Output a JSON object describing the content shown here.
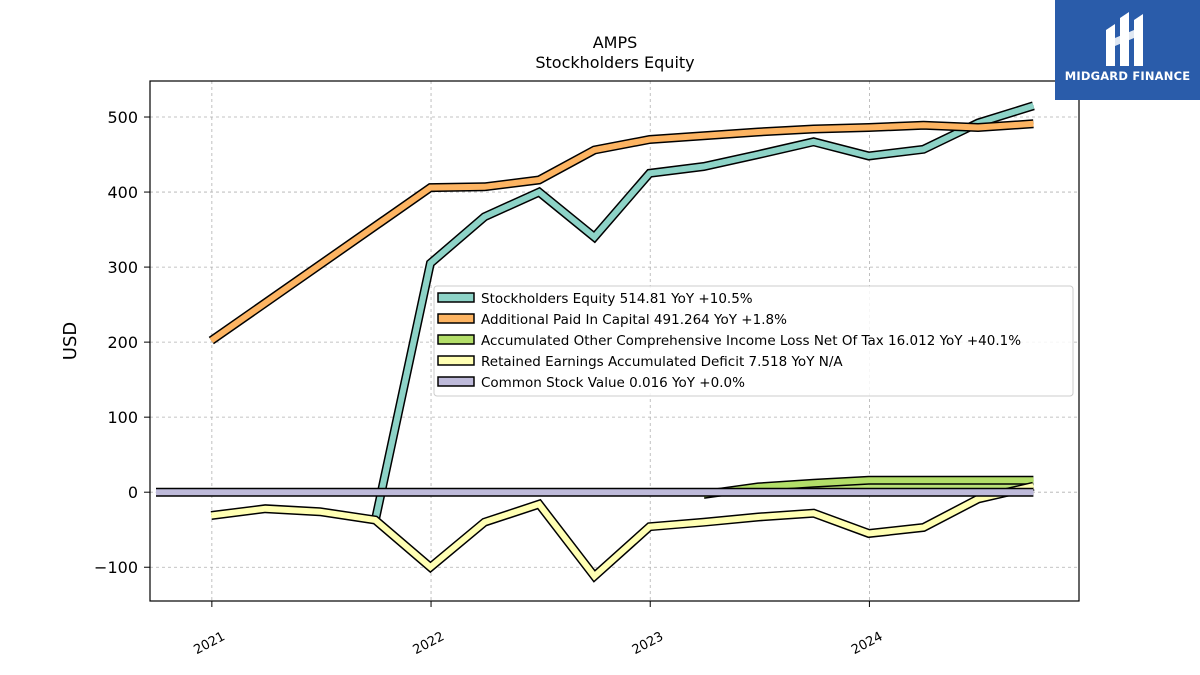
{
  "brand": {
    "name": "MIDGARD FINANCE",
    "background": "#2a5caa"
  },
  "chart_data": {
    "type": "line",
    "title": "AMPS",
    "subtitle": "Stockholders  Equity",
    "ylabel": "USD",
    "xlabel": "",
    "ylim": [
      -145,
      548
    ],
    "xlim": [
      "2020-09-20",
      "2024-12-15"
    ],
    "yticks": [
      -100,
      0,
      100,
      200,
      300,
      400,
      500
    ],
    "ytick_labels": [
      "−100",
      "0",
      "100",
      "200",
      "300",
      "400",
      "500"
    ],
    "xticks": [
      "2021-01-01",
      "2022-01-01",
      "2023-01-01",
      "2024-01-01"
    ],
    "xtick_labels": [
      "2021",
      "2022",
      "2023",
      "2024"
    ],
    "grid": true,
    "legend_position": "center-right",
    "series": [
      {
        "name": "Stockholders Equity",
        "legend": "Stockholders Equity  514.81 YoY +10.5%",
        "color": "#8dd3c7",
        "points": [
          [
            "2021-09-30",
            -38
          ],
          [
            "2021-12-31",
            305
          ],
          [
            "2022-03-31",
            367
          ],
          [
            "2022-06-30",
            400
          ],
          [
            "2022-09-30",
            340
          ],
          [
            "2022-12-31",
            425
          ],
          [
            "2023-03-31",
            434
          ],
          [
            "2023-06-30",
            450
          ],
          [
            "2023-09-30",
            467
          ],
          [
            "2023-12-31",
            448
          ],
          [
            "2024-03-31",
            457
          ],
          [
            "2024-06-30",
            492
          ],
          [
            "2024-09-30",
            515
          ]
        ]
      },
      {
        "name": "Additional Paid In Capital",
        "legend": "Additional Paid In Capital  491.264 YoY +1.8%",
        "color": "#fdb462",
        "points": [
          [
            "2020-12-31",
            202
          ],
          [
            "2021-12-31",
            406
          ],
          [
            "2022-03-31",
            407
          ],
          [
            "2022-06-30",
            416
          ],
          [
            "2022-09-30",
            456
          ],
          [
            "2022-12-31",
            470
          ],
          [
            "2023-03-31",
            475
          ],
          [
            "2023-06-30",
            480
          ],
          [
            "2023-09-30",
            484
          ],
          [
            "2023-12-31",
            486
          ],
          [
            "2024-03-31",
            489
          ],
          [
            "2024-06-30",
            486
          ],
          [
            "2024-09-30",
            491
          ]
        ]
      },
      {
        "name": "Accumulated Other Comprehensive Income Loss Net Of Tax",
        "legend": "Accumulated Other Comprehensive Income Loss Net Of Tax  16.012 YoY +40.1%",
        "color": "#b3de69",
        "fill_to_zero": true,
        "points": [
          [
            "2023-03-31",
            -3
          ],
          [
            "2023-06-30",
            7
          ],
          [
            "2023-09-30",
            12
          ],
          [
            "2023-12-31",
            16
          ],
          [
            "2024-03-31",
            16
          ],
          [
            "2024-06-30",
            16
          ],
          [
            "2024-09-30",
            16
          ]
        ]
      },
      {
        "name": "Retained Earnings Accumulated Deficit",
        "legend": "Retained Earnings Accumulated Deficit  7.518 YoY N/A",
        "color": "#ffffb3",
        "points": [
          [
            "2020-12-31",
            -31
          ],
          [
            "2021-03-31",
            -22
          ],
          [
            "2021-06-30",
            -26
          ],
          [
            "2021-09-30",
            -37
          ],
          [
            "2021-12-31",
            -100
          ],
          [
            "2022-03-31",
            -40
          ],
          [
            "2022-06-30",
            -16
          ],
          [
            "2022-09-30",
            -112
          ],
          [
            "2022-12-31",
            -46
          ],
          [
            "2023-03-31",
            -40
          ],
          [
            "2023-06-30",
            -33
          ],
          [
            "2023-09-30",
            -28
          ],
          [
            "2023-12-31",
            -55
          ],
          [
            "2024-03-31",
            -47
          ],
          [
            "2024-06-30",
            -9
          ],
          [
            "2024-09-30",
            8
          ]
        ]
      },
      {
        "name": "Common Stock Value",
        "legend": "Common Stock Value  0.016 YoY +0.0%",
        "color": "#bebada",
        "points": [
          [
            "2020-09-30",
            0
          ],
          [
            "2024-09-30",
            0
          ]
        ]
      }
    ]
  }
}
